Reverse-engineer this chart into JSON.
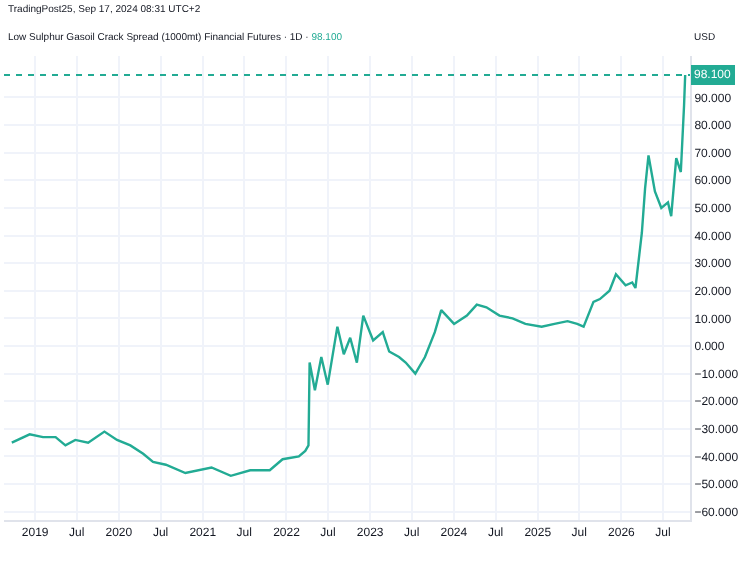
{
  "chart_data": {
    "type": "line",
    "title": "Low Sulphur Gasoil Crack Spread (1000mt) Financial Futures · 1D ·",
    "annotations": [
      "TradingPost25, Sep 17, 2024 08:31 UTC+2",
      "USD",
      "98.100"
    ],
    "x": [
      "2018-09-21",
      "2018-12-08",
      "2019-02-04",
      "2019-03-31",
      "2019-05-13",
      "2019-06-25",
      "2019-08-20",
      "2019-10-30",
      "2019-12-24",
      "2020-02-20",
      "2020-04-16",
      "2020-05-29",
      "2020-07-24",
      "2020-10-17",
      "2021-02-08",
      "2021-05-03",
      "2021-07-27",
      "2021-10-20",
      "2021-12-15",
      "2022-02-24",
      "2022-03-24",
      "2022-04-07",
      "2022-04-12",
      "2022-05-05",
      "2022-06-02",
      "2022-06-30",
      "2022-08-11",
      "2022-09-08",
      "2022-10-06",
      "2022-11-04",
      "2022-12-02",
      "2023-01-14",
      "2023-02-25",
      "2023-03-25",
      "2023-05-07",
      "2023-06-05",
      "2023-07-17",
      "2023-08-28",
      "2023-10-10",
      "2023-11-07",
      "2024-01-02",
      "2024-02-27",
      "2024-04-10",
      "2024-05-22",
      "2024-07-18",
      "2024-09-13",
      "2024-11-08",
      "2025-01-18",
      "2025-03-15",
      "2025-05-11",
      "2025-06-22",
      "2025-07-20",
      "2025-09-01",
      "2025-09-29",
      "2025-11-10",
      "2025-12-08",
      "2026-01-19",
      "2026-02-17",
      "2026-03-03",
      "2026-03-31",
      "2026-04-14",
      "2026-04-29",
      "2026-05-27",
      "2026-06-24",
      "2026-07-23",
      "2026-08-06",
      "2026-08-28",
      "2026-09-17",
      "2026-10-01",
      "2026-10-06"
    ],
    "series": [
      {
        "color": "#22ab94",
        "values": [
          -35,
          -32,
          -33,
          -33,
          -36,
          -34,
          -35,
          -31,
          -34,
          -36,
          -39,
          -42,
          -43,
          -46,
          -44,
          -47,
          -45,
          -45,
          -41,
          -40,
          -38,
          -36,
          -6,
          -16,
          -4,
          -14,
          7,
          -3,
          3,
          -6,
          11,
          2,
          5,
          -2,
          -4,
          -6,
          -10,
          -4,
          5,
          13,
          8,
          11,
          15,
          14,
          11,
          10,
          8,
          7,
          8,
          9,
          8,
          7,
          16,
          17,
          20,
          26,
          22,
          23,
          21,
          41,
          57,
          69,
          56,
          50,
          52,
          47,
          68,
          63,
          87,
          98.1
        ]
      }
    ],
    "xlim": [
      "2018-08-18",
      "2026-10-27"
    ],
    "xticks": [
      {
        "value": "2019-01-01",
        "label": "2019"
      },
      {
        "value": "2019-07-01",
        "label": "Jul"
      },
      {
        "value": "2020-01-01",
        "label": "2020"
      },
      {
        "value": "2020-07-01",
        "label": "Jul"
      },
      {
        "value": "2021-01-01",
        "label": "2021"
      },
      {
        "value": "2021-07-01",
        "label": "Jul"
      },
      {
        "value": "2022-01-01",
        "label": "2022"
      },
      {
        "value": "2022-07-01",
        "label": "Jul"
      },
      {
        "value": "2023-01-01",
        "label": "2023"
      },
      {
        "value": "2023-07-01",
        "label": "Jul"
      },
      {
        "value": "2024-01-01",
        "label": "2024"
      },
      {
        "value": "2024-07-01",
        "label": "Jul"
      },
      {
        "value": "2025-01-01",
        "label": "2025"
      },
      {
        "value": "2025-07-01",
        "label": "Jul"
      },
      {
        "value": "2026-01-01",
        "label": "2026"
      },
      {
        "value": "2026-07-01",
        "label": "Jul"
      }
    ],
    "ylim": [
      -63,
      105
    ],
    "yticks": [
      {
        "value": -60,
        "label": "−60.000"
      },
      {
        "value": -50,
        "label": "−50.000"
      },
      {
        "value": -40,
        "label": "−40.000"
      },
      {
        "value": -30,
        "label": "−30.000"
      },
      {
        "value": -20,
        "label": "−20.000"
      },
      {
        "value": -10,
        "label": "−10.000"
      },
      {
        "value": 0,
        "label": "0.000"
      },
      {
        "value": 10,
        "label": "10.000"
      },
      {
        "value": 20,
        "label": "20.000"
      },
      {
        "value": 30,
        "label": "30.000"
      },
      {
        "value": 40,
        "label": "40.000"
      },
      {
        "value": 50,
        "label": "50.000"
      },
      {
        "value": 60,
        "label": "60.000"
      },
      {
        "value": 70,
        "label": "70.000"
      },
      {
        "value": 80,
        "label": "80.000"
      },
      {
        "value": 90,
        "label": "90.000"
      }
    ],
    "ref_lines": [
      {
        "axis": "y",
        "value": 98.1,
        "label": "98.100",
        "color": "#22ab94",
        "line_style": "dotted"
      }
    ],
    "grid": true,
    "marker": "none",
    "line_style": "solid"
  }
}
